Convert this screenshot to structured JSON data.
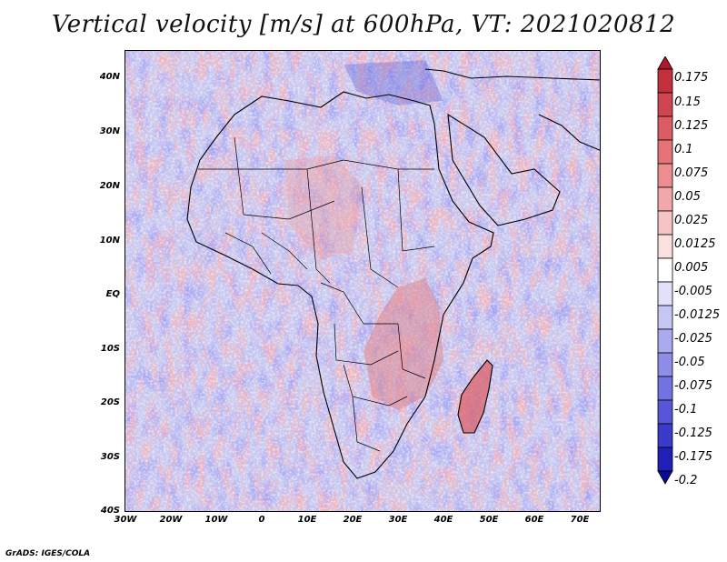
{
  "title": "Vertical velocity [m/s] at 600hPa, VT: 2021020812",
  "footer": "GrADS: IGES/COLA",
  "map": {
    "region": "Africa",
    "variable": "vertical velocity",
    "level": "600hPa",
    "lat_labels": [
      "40N",
      "30N",
      "20N",
      "10N",
      "EQ",
      "10S",
      "20S",
      "30S",
      "40S"
    ],
    "lon_labels": [
      "30W",
      "20W",
      "10W",
      "0",
      "10E",
      "20E",
      "30E",
      "40E",
      "50E",
      "60E",
      "70E"
    ],
    "lat_range": [
      -40,
      45
    ],
    "lon_range": [
      -30,
      75
    ]
  },
  "colorbar": {
    "labels": [
      "0.175",
      "0.15",
      "0.125",
      "0.1",
      "0.075",
      "0.05",
      "0.025",
      "0.0125",
      "0.005",
      "-0.005",
      "-0.0125",
      "-0.025",
      "-0.05",
      "-0.075",
      "-0.1",
      "-0.125",
      "-0.175",
      "-0.2"
    ],
    "colors": [
      "#b2182b",
      "#c32f3c",
      "#d0454f",
      "#dc5c63",
      "#e57479",
      "#ec8d90",
      "#f2a8aa",
      "#f7c4c5",
      "#fbe0e0",
      "#ffffff",
      "#e1e1fa",
      "#c6c6f5",
      "#aaaaef",
      "#8e8ee9",
      "#7272e0",
      "#5656d6",
      "#3a3acb",
      "#2020b8",
      "#0b0b9a"
    ]
  }
}
